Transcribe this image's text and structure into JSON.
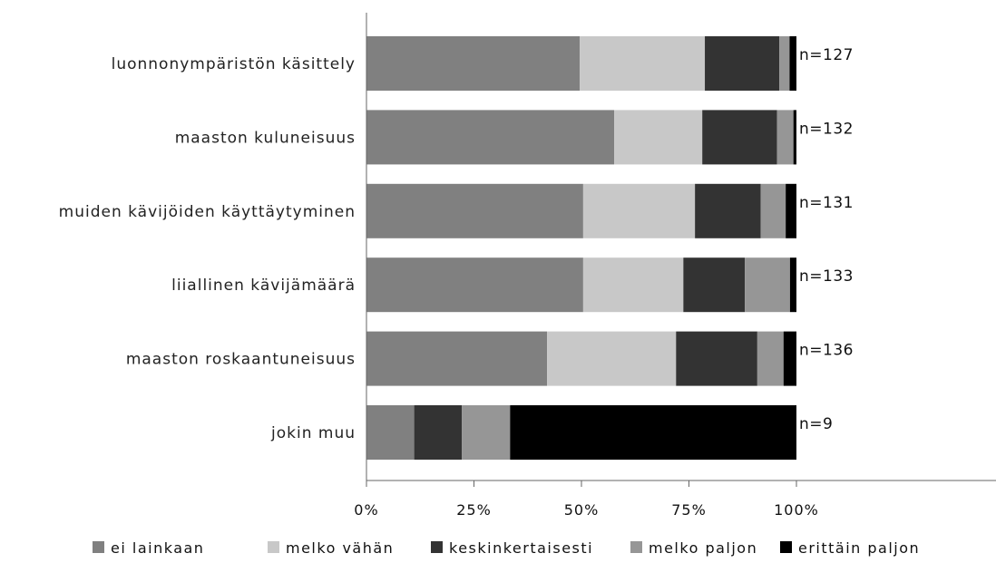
{
  "chart_data": {
    "type": "bar",
    "orientation": "horizontal",
    "stacked": true,
    "normalized": true,
    "categories": [
      "luonnonympäristön käsittely",
      "maaston kuluneisuus",
      "muiden kävijöiden käyttäytyminen",
      "liiallinen kävijämäärä",
      "maaston roskaantuneisuus",
      "jokin muu"
    ],
    "n_labels": [
      "n=127",
      "n=132",
      "n=131",
      "n=133",
      "n=136",
      "n=9"
    ],
    "series": [
      {
        "name": "ei lainkaan",
        "color": "#808080",
        "values": [
          49.6,
          57.6,
          50.4,
          50.4,
          42.0,
          11.1
        ]
      },
      {
        "name": "melko vähän",
        "color": "#c8c8c8",
        "values": [
          29.1,
          20.5,
          26.0,
          23.3,
          30.0,
          0
        ]
      },
      {
        "name": "keskinkertaisesti",
        "color": "#333333",
        "values": [
          17.3,
          17.4,
          15.3,
          14.3,
          18.9,
          11.1
        ]
      },
      {
        "name": "melko paljon",
        "color": "#969696",
        "values": [
          2.4,
          3.8,
          5.8,
          10.5,
          6.1,
          11.2
        ]
      },
      {
        "name": "erittäin paljon",
        "color": "#000000",
        "values": [
          1.6,
          0.7,
          2.5,
          1.5,
          3.0,
          66.6
        ]
      }
    ],
    "x_ticks": [
      "0%",
      "25%",
      "50%",
      "75%",
      "100%"
    ],
    "xlim": [
      0,
      100
    ],
    "grid": false,
    "legend_position": "bottom"
  }
}
